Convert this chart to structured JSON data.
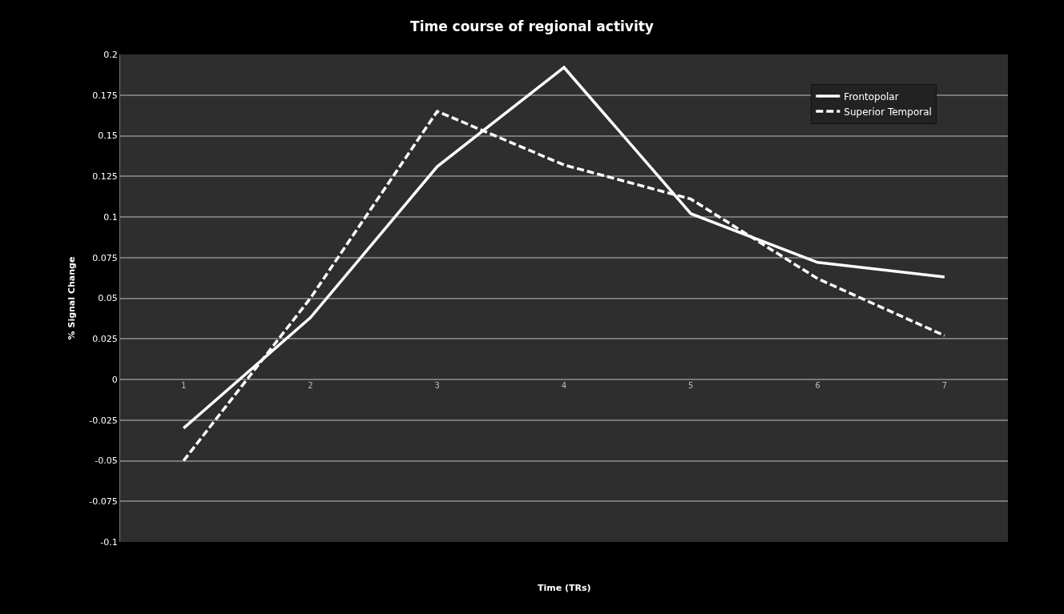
{
  "chart_data": {
    "type": "line",
    "title": "Time course of regional activity",
    "xlabel": "Time (TRs)",
    "ylabel": "% Signal Change",
    "categories": [
      "1",
      "2",
      "3",
      "4",
      "5",
      "6",
      "7"
    ],
    "series": [
      {
        "name": "Frontopolar",
        "color": "#ffffff",
        "line_style": "solid",
        "values": [
          -0.03,
          0.038,
          0.131,
          0.192,
          0.102,
          0.072,
          0.063
        ]
      },
      {
        "name": "Superior Temporal",
        "color": "#ffffff",
        "line_style": "dashed",
        "values": [
          -0.05,
          0.05,
          0.165,
          0.132,
          0.111,
          0.062,
          0.027
        ]
      }
    ],
    "ylim": [
      -0.1,
      0.2
    ],
    "yticks": [
      -0.1,
      -0.075,
      -0.05,
      -0.025,
      0,
      0.025,
      0.05,
      0.075,
      0.1,
      0.125,
      0.15,
      0.175,
      0.2
    ],
    "grid": "y",
    "legend": "top right",
    "marker": "none"
  }
}
